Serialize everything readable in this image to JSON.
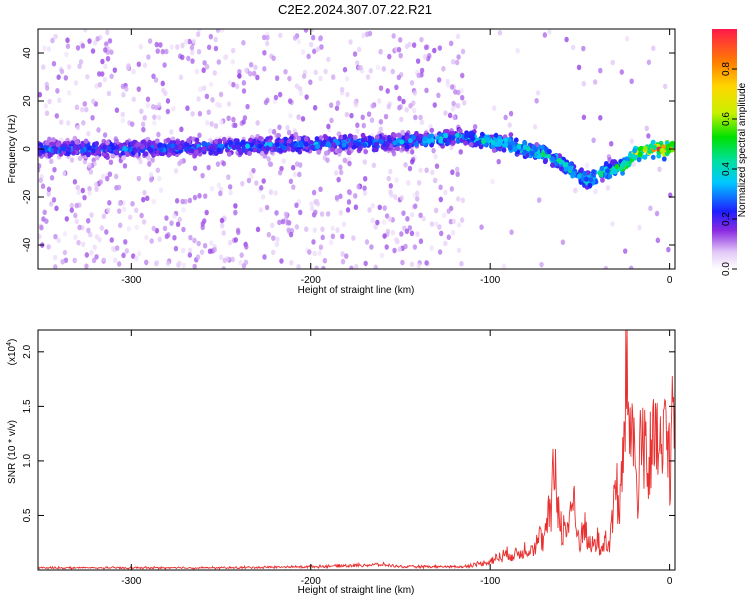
{
  "title": "C2E2.2024.307.07.22.R21",
  "colors": {
    "snr_line": "#e8302f",
    "frame": "#000000"
  },
  "chart_data": [
    {
      "type": "heatmap",
      "xlabel": "Height of straight line (km)",
      "ylabel": "Frequency (Hz)",
      "xlim": [
        -352,
        3
      ],
      "ylim": [
        -50,
        50
      ],
      "x_ticks": [
        -300,
        -200,
        -100,
        0
      ],
      "x_tick_labels": [
        "-300",
        "-200",
        "-100",
        "0"
      ],
      "y_ticks": [
        -40,
        -20,
        0,
        20,
        40
      ],
      "y_tick_labels": [
        "-40",
        "-20",
        "0",
        "20",
        "40"
      ],
      "ridge": {
        "x": [
          -352,
          -300,
          -250,
          -200,
          -150,
          -115,
          -100,
          -90,
          -80,
          -70,
          -60,
          -50,
          -45,
          -40,
          -35,
          -30,
          -25,
          -20,
          -10,
          0,
          3
        ],
        "frequency": [
          0,
          0,
          1,
          2,
          3,
          5,
          3,
          2,
          0,
          -2,
          -6,
          -11,
          -13,
          -11,
          -9,
          -8,
          -7,
          -2,
          0,
          0,
          0
        ],
        "amplitude": [
          0.3,
          0.3,
          0.32,
          0.33,
          0.33,
          0.4,
          0.45,
          0.45,
          0.45,
          0.45,
          0.45,
          0.45,
          0.45,
          0.45,
          0.48,
          0.5,
          0.55,
          0.6,
          0.8,
          0.95,
          0.8
        ]
      },
      "colorbar": {
        "label": "Normalized spectral amplitude",
        "range": [
          0,
          0.96
        ],
        "ticks": [
          0.0,
          0.2,
          0.4,
          0.6,
          0.8
        ],
        "tick_labels": [
          "0.0",
          "0.2",
          "0.4",
          "0.6",
          "0.8"
        ]
      },
      "grid": false
    },
    {
      "type": "line",
      "xlabel": "Height of straight line (km)",
      "ylabel": "SNR (10 * v/v)",
      "multiplier_label": "(x10",
      "multiplier_exp": "4",
      "multiplier_close": ")",
      "xlim": [
        -352,
        3
      ],
      "ylim": [
        0,
        2.2
      ],
      "x_ticks": [
        -300,
        -200,
        -100,
        0
      ],
      "x_tick_labels": [
        "-300",
        "-200",
        "-100",
        "0"
      ],
      "y_ticks": [
        0.5,
        1.0,
        1.5,
        2.0
      ],
      "y_tick_labels": [
        "0.5",
        "1.0",
        "1.5",
        "2.0"
      ],
      "series": [
        {
          "x": [
            -352,
            -300,
            -250,
            -200,
            -160,
            -150,
            -130,
            -115,
            -105,
            -100,
            -95,
            -90,
            -85,
            -80,
            -75,
            -72,
            -70,
            -68,
            -66,
            -64,
            -62,
            -60,
            -58,
            -56,
            -54,
            -52,
            -50,
            -48,
            -46,
            -44,
            -42,
            -40,
            -38,
            -36,
            -34,
            -32,
            -31,
            -30,
            -28,
            -26,
            -25,
            -24,
            -23,
            -22,
            -20,
            -18,
            -16,
            -14,
            -12,
            -10,
            -8,
            -6,
            -4,
            -2,
            0,
            2,
            3
          ],
          "y": [
            0.02,
            0.02,
            0.02,
            0.03,
            0.05,
            0.03,
            0.03,
            0.03,
            0.06,
            0.08,
            0.12,
            0.15,
            0.14,
            0.2,
            0.22,
            0.3,
            0.25,
            0.45,
            0.55,
            1.0,
            0.55,
            0.4,
            0.35,
            0.45,
            0.7,
            0.35,
            0.25,
            0.45,
            0.3,
            0.2,
            0.25,
            0.28,
            0.15,
            0.3,
            0.22,
            0.4,
            0.65,
            0.9,
            0.45,
            1.0,
            1.45,
            2.2,
            1.2,
            1.55,
            1.15,
            0.75,
            1.1,
            1.3,
            0.85,
            1.15,
            1.05,
            1.2,
            0.95,
            1.35,
            1.0,
            1.45,
            1.15
          ]
        }
      ],
      "grid": false
    }
  ]
}
